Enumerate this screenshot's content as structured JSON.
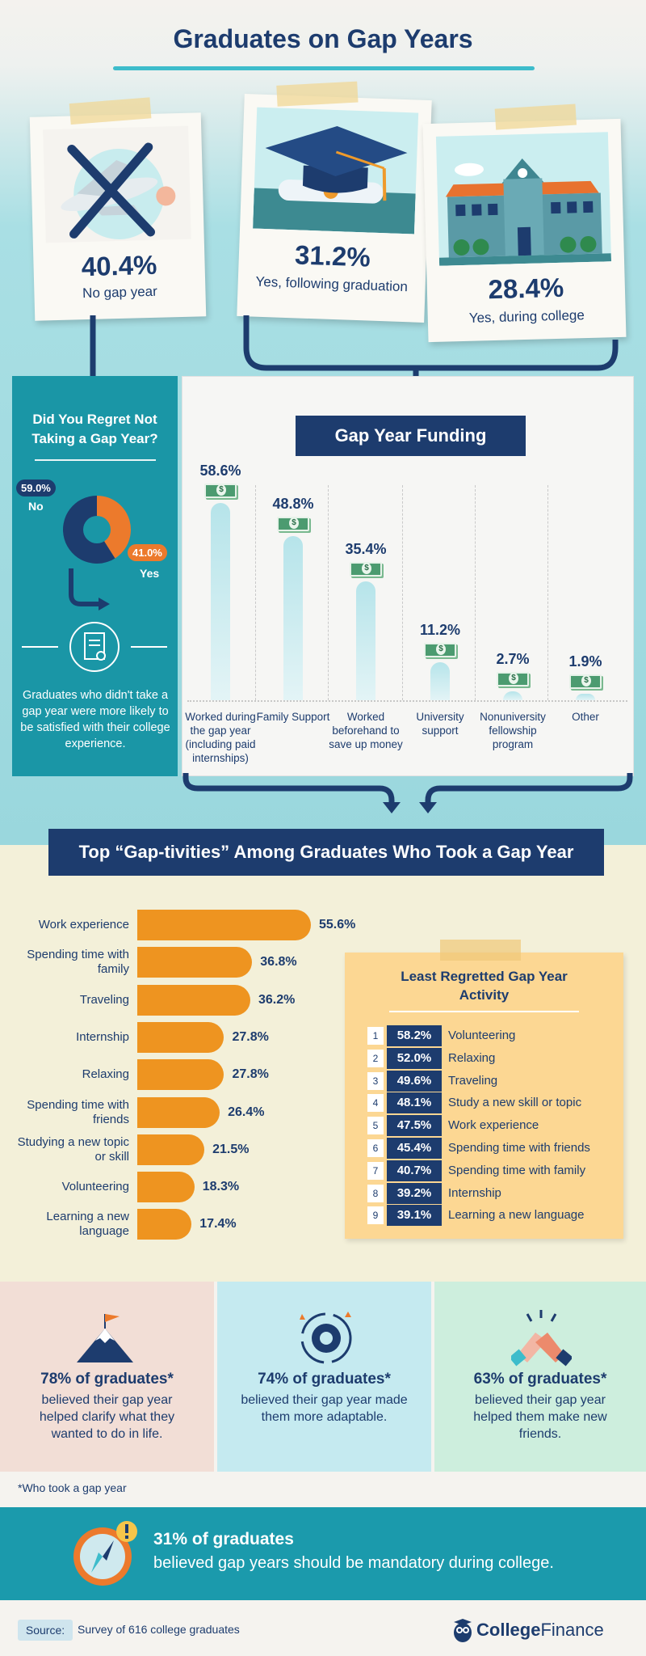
{
  "title": "Graduates on Gap Years",
  "gap_year_status": [
    {
      "pct": "40.4%",
      "label": "No gap year"
    },
    {
      "pct": "31.2%",
      "label": "Yes, following graduation"
    },
    {
      "pct": "28.4%",
      "label": "Yes, during college"
    }
  ],
  "regret": {
    "title_line1": "Did You Regret Not",
    "title_line2": "Taking a Gap Year?",
    "no_pct": "59.0%",
    "no_label": "No",
    "yes_pct": "41.0%",
    "yes_label": "Yes",
    "note": "Graduates who didn't take a gap year were more likely to be satisfied with their college experience."
  },
  "funding": {
    "title": "Gap Year Funding",
    "items": [
      {
        "pct": "58.6%",
        "label": "Worked during the gap year (including paid internships)"
      },
      {
        "pct": "48.8%",
        "label": "Family Support"
      },
      {
        "pct": "35.4%",
        "label": "Worked beforehand to save up money"
      },
      {
        "pct": "11.2%",
        "label": "University support"
      },
      {
        "pct": "2.7%",
        "label": "Nonuniversity fellowship program"
      },
      {
        "pct": "1.9%",
        "label": "Other"
      }
    ]
  },
  "activities": {
    "title": "Top “Gap-tivities” Among Graduates Who Took a Gap Year",
    "items": [
      {
        "label": "Work experience",
        "pct": "55.6%"
      },
      {
        "label": "Spending time with family",
        "pct": "36.8%"
      },
      {
        "label": "Traveling",
        "pct": "36.2%"
      },
      {
        "label": "Internship",
        "pct": "27.8%"
      },
      {
        "label": "Relaxing",
        "pct": "27.8%"
      },
      {
        "label": "Spending time with friends",
        "pct": "26.4%"
      },
      {
        "label": "Studying a new topic or skill",
        "pct": "21.5%"
      },
      {
        "label": "Volunteering",
        "pct": "18.3%"
      },
      {
        "label": "Learning a new language",
        "pct": "17.4%"
      }
    ]
  },
  "least_regretted": {
    "title_line1": "Least Regretted Gap Year",
    "title_line2": "Activity",
    "items": [
      {
        "rank": "1",
        "pct": "58.2%",
        "label": "Volunteering"
      },
      {
        "rank": "2",
        "pct": "52.0%",
        "label": "Relaxing"
      },
      {
        "rank": "3",
        "pct": "49.6%",
        "label": "Traveling"
      },
      {
        "rank": "4",
        "pct": "48.1%",
        "label": "Study a new skill or topic"
      },
      {
        "rank": "5",
        "pct": "47.5%",
        "label": "Work experience"
      },
      {
        "rank": "6",
        "pct": "45.4%",
        "label": "Spending time with friends"
      },
      {
        "rank": "7",
        "pct": "40.7%",
        "label": "Spending time with family"
      },
      {
        "rank": "8",
        "pct": "39.2%",
        "label": "Internship"
      },
      {
        "rank": "9",
        "pct": "39.1%",
        "label": "Learning a new language"
      }
    ]
  },
  "stats": [
    {
      "big": "78% of graduates*",
      "small": "believed their gap year helped clarify what they wanted to do in life.",
      "bg": "#f2ded6",
      "icon": "mountain-flag-icon"
    },
    {
      "big": "74% of graduates*",
      "small": "believed their gap year made them more adaptable.",
      "bg": "#c5eaf0",
      "icon": "gear-icon"
    },
    {
      "big": "63% of graduates*",
      "small": "believed their gap year helped them make new friends.",
      "bg": "#cdeedd",
      "icon": "handshake-icon"
    }
  ],
  "footnote": "*Who took a gap year",
  "mandatory": {
    "line1": "31% of graduates",
    "line2": "believed gap years should be mandatory during college."
  },
  "source": {
    "tag": "Source:",
    "text": "Survey of 616 college graduates"
  },
  "brand": {
    "name_a": "College",
    "name_b": "Finance"
  },
  "colors": {
    "navy": "#1d3c6e",
    "teal": "#1a96a6",
    "orange": "#ee9420",
    "pie_orange": "#ec7a2c"
  },
  "chart_data": [
    {
      "type": "pie",
      "title": "Did You Regret Not Taking a Gap Year?",
      "categories": [
        "No",
        "Yes"
      ],
      "values": [
        59.0,
        41.0
      ]
    },
    {
      "type": "bar",
      "title": "Gap Year Funding",
      "categories": [
        "Worked during the gap year (including paid internships)",
        "Family Support",
        "Worked beforehand to save up money",
        "University support",
        "Nonuniversity fellowship program",
        "Other"
      ],
      "values": [
        58.6,
        48.8,
        35.4,
        11.2,
        2.7,
        1.9
      ],
      "ylim": [
        0,
        60
      ]
    },
    {
      "type": "bar",
      "title": "Top “Gap-tivities” Among Graduates Who Took a Gap Year",
      "categories": [
        "Work experience",
        "Spending time with family",
        "Traveling",
        "Internship",
        "Relaxing",
        "Spending time with friends",
        "Studying a new topic or skill",
        "Volunteering",
        "Learning a new language"
      ],
      "values": [
        55.6,
        36.8,
        36.2,
        27.8,
        27.8,
        26.4,
        21.5,
        18.3,
        17.4
      ],
      "xlim": [
        0,
        60
      ]
    }
  ]
}
